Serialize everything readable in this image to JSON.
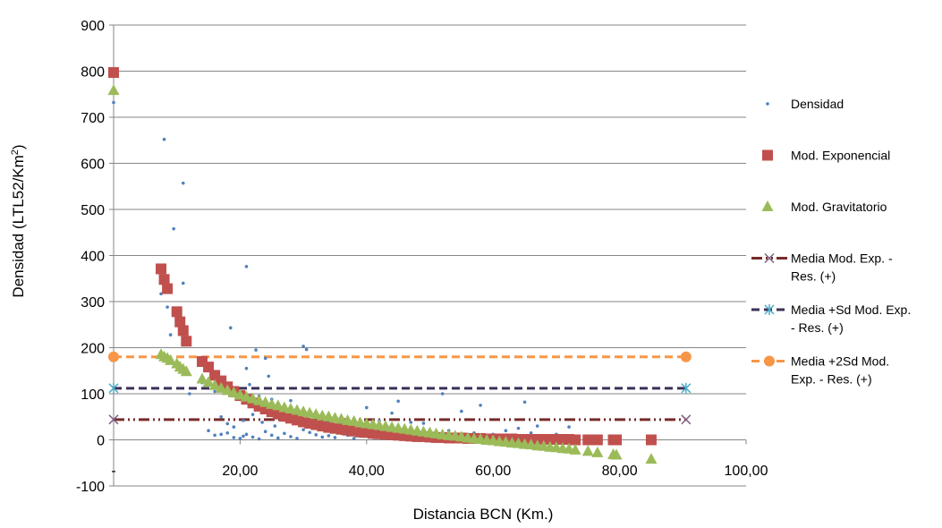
{
  "chart_data": {
    "type": "scatter",
    "title": "",
    "xlabel": "Distancia BCN (Km.)",
    "ylabel_main": "Densidad (LTL52/Km",
    "ylabel_sup": "2",
    "ylabel_end": ")",
    "xlim": [
      0,
      100
    ],
    "ylim": [
      -100,
      900
    ],
    "x_ticks": [
      {
        "v": 0,
        "label": "-"
      },
      {
        "v": 20,
        "label": "20,00"
      },
      {
        "v": 40,
        "label": "40,00"
      },
      {
        "v": 60,
        "label": "60,00"
      },
      {
        "v": 80,
        "label": "80,00"
      },
      {
        "v": 100,
        "label": "100,00"
      }
    ],
    "y_ticks": [
      {
        "v": -100,
        "label": "-100"
      },
      {
        "v": 0,
        "label": "0"
      },
      {
        "v": 100,
        "label": "100"
      },
      {
        "v": 200,
        "label": "200"
      },
      {
        "v": 300,
        "label": "300"
      },
      {
        "v": 400,
        "label": "400"
      },
      {
        "v": 500,
        "label": "500"
      },
      {
        "v": 600,
        "label": "600"
      },
      {
        "v": 700,
        "label": "700"
      },
      {
        "v": 800,
        "label": "800"
      },
      {
        "v": 900,
        "label": "900"
      }
    ],
    "grid": "horizontal",
    "legend_position": "right",
    "series": [
      {
        "name": "Densidad",
        "marker": "dot",
        "color": "#4f81bd",
        "points": [
          [
            0,
            732
          ],
          [
            8,
            652
          ],
          [
            11,
            557
          ],
          [
            9.5,
            458
          ],
          [
            21,
            376
          ],
          [
            11,
            340
          ],
          [
            7.5,
            317
          ],
          [
            8.5,
            288
          ],
          [
            18.5,
            243
          ],
          [
            9,
            228
          ],
          [
            22.5,
            195
          ],
          [
            30,
            203
          ],
          [
            30.5,
            196
          ],
          [
            24,
            177
          ],
          [
            21,
            155
          ],
          [
            24.5,
            138
          ],
          [
            12,
            100
          ],
          [
            14,
            124
          ],
          [
            16,
            105
          ],
          [
            19,
            112
          ],
          [
            20,
            90
          ],
          [
            21.5,
            120
          ],
          [
            22,
            75
          ],
          [
            23,
            95
          ],
          [
            25,
            88
          ],
          [
            26,
            70
          ],
          [
            27,
            62
          ],
          [
            28,
            85
          ],
          [
            29,
            55
          ],
          [
            31,
            60
          ],
          [
            33,
            48
          ],
          [
            34,
            40
          ],
          [
            36,
            35
          ],
          [
            38,
            30
          ],
          [
            40,
            70
          ],
          [
            42,
            42
          ],
          [
            44,
            58
          ],
          [
            45,
            84
          ],
          [
            47,
            38
          ],
          [
            49,
            36
          ],
          [
            52,
            100
          ],
          [
            53,
            20
          ],
          [
            55,
            62
          ],
          [
            57,
            15
          ],
          [
            58,
            75
          ],
          [
            60,
            12
          ],
          [
            62,
            20
          ],
          [
            64,
            25
          ],
          [
            65,
            82
          ],
          [
            66,
            15
          ],
          [
            67,
            30
          ],
          [
            68,
            8
          ],
          [
            70,
            12
          ],
          [
            72,
            28
          ],
          [
            15,
            20
          ],
          [
            16,
            10
          ],
          [
            17,
            12
          ],
          [
            18,
            15
          ],
          [
            19,
            5
          ],
          [
            20,
            3
          ],
          [
            20.5,
            8
          ],
          [
            21,
            12
          ],
          [
            22,
            6
          ],
          [
            23,
            2
          ],
          [
            24,
            18
          ],
          [
            25,
            10
          ],
          [
            26,
            4
          ],
          [
            27,
            14
          ],
          [
            28,
            7
          ],
          [
            29,
            3
          ],
          [
            30,
            22
          ],
          [
            31,
            16
          ],
          [
            32,
            11
          ],
          [
            33,
            6
          ],
          [
            34,
            9
          ],
          [
            35,
            5
          ],
          [
            36,
            14
          ],
          [
            37,
            10
          ],
          [
            38,
            3
          ],
          [
            39,
            8
          ],
          [
            41,
            5
          ],
          [
            43,
            12
          ],
          [
            46,
            3
          ],
          [
            48,
            6
          ],
          [
            50,
            4
          ],
          [
            17,
            50
          ],
          [
            18,
            35
          ],
          [
            19,
            28
          ],
          [
            20.5,
            42
          ],
          [
            22,
            55
          ],
          [
            23.5,
            38
          ],
          [
            25.5,
            30
          ],
          [
            26.5,
            45
          ],
          [
            28,
            40
          ],
          [
            29.5,
            33
          ],
          [
            32,
            28
          ],
          [
            35,
            25
          ]
        ]
      },
      {
        "name": "Mod. Exponencial",
        "marker": "square",
        "color": "#c0504d",
        "points": [
          [
            0,
            797
          ],
          [
            7.5,
            371
          ],
          [
            8,
            348
          ],
          [
            8.5,
            328
          ],
          [
            10,
            278
          ],
          [
            10.5,
            256
          ],
          [
            11,
            237
          ],
          [
            11.5,
            214
          ],
          [
            14,
            170
          ],
          [
            15,
            158
          ],
          [
            16,
            140
          ],
          [
            17,
            128
          ],
          [
            18,
            115
          ],
          [
            19,
            105
          ],
          [
            20,
            96
          ],
          [
            21,
            88
          ],
          [
            22,
            80
          ],
          [
            23,
            73
          ],
          [
            24,
            67
          ],
          [
            25,
            61
          ],
          [
            26,
            56
          ],
          [
            27,
            51
          ],
          [
            28,
            47
          ],
          [
            29,
            43
          ],
          [
            30,
            39
          ],
          [
            31,
            36
          ],
          [
            32,
            33
          ],
          [
            33,
            30
          ],
          [
            34,
            27
          ],
          [
            35,
            25
          ],
          [
            36,
            23
          ],
          [
            37,
            21
          ],
          [
            38,
            19
          ],
          [
            39,
            17
          ],
          [
            40,
            16
          ],
          [
            41,
            14
          ],
          [
            42,
            13
          ],
          [
            43,
            12
          ],
          [
            44,
            11
          ],
          [
            45,
            10
          ],
          [
            46,
            9
          ],
          [
            47,
            8
          ],
          [
            48,
            7
          ],
          [
            49,
            7
          ],
          [
            50,
            6
          ],
          [
            51,
            5
          ],
          [
            52,
            5
          ],
          [
            53,
            4
          ],
          [
            54,
            4
          ],
          [
            55,
            4
          ],
          [
            56,
            3
          ],
          [
            57,
            3
          ],
          [
            58,
            3
          ],
          [
            59,
            2
          ],
          [
            60,
            2
          ],
          [
            61,
            2
          ],
          [
            62,
            2
          ],
          [
            63,
            2
          ],
          [
            64,
            1
          ],
          [
            65,
            1
          ],
          [
            66,
            1
          ],
          [
            67,
            1
          ],
          [
            68,
            1
          ],
          [
            69,
            1
          ],
          [
            70,
            1
          ],
          [
            71,
            1
          ],
          [
            72,
            1
          ],
          [
            73,
            0
          ],
          [
            75,
            0
          ],
          [
            76.5,
            0
          ],
          [
            79,
            0
          ],
          [
            79.5,
            0
          ],
          [
            85,
            0
          ]
        ]
      },
      {
        "name": "Mod. Gravitatorio",
        "marker": "triangle",
        "color": "#9bbb59",
        "points": [
          [
            0,
            758
          ],
          [
            7.5,
            185
          ],
          [
            8,
            180
          ],
          [
            8.5,
            177
          ],
          [
            9,
            172
          ],
          [
            10,
            165
          ],
          [
            10.5,
            158
          ],
          [
            11,
            153
          ],
          [
            11.5,
            148
          ],
          [
            14,
            132
          ],
          [
            15,
            125
          ],
          [
            16,
            118
          ],
          [
            17,
            112
          ],
          [
            18,
            107
          ],
          [
            19,
            102
          ],
          [
            20,
            97
          ],
          [
            21,
            93
          ],
          [
            22,
            89
          ],
          [
            23,
            85
          ],
          [
            24,
            81
          ],
          [
            25,
            77
          ],
          [
            26,
            74
          ],
          [
            27,
            70
          ],
          [
            28,
            67
          ],
          [
            29,
            64
          ],
          [
            30,
            61
          ],
          [
            31,
            58
          ],
          [
            32,
            55
          ],
          [
            33,
            52
          ],
          [
            34,
            50
          ],
          [
            35,
            47
          ],
          [
            36,
            45
          ],
          [
            37,
            42
          ],
          [
            38,
            40
          ],
          [
            39,
            37
          ],
          [
            40,
            35
          ],
          [
            41,
            33
          ],
          [
            42,
            31
          ],
          [
            43,
            29
          ],
          [
            44,
            27
          ],
          [
            45,
            25
          ],
          [
            46,
            23
          ],
          [
            47,
            21
          ],
          [
            48,
            19
          ],
          [
            49,
            17
          ],
          [
            50,
            15
          ],
          [
            51,
            13
          ],
          [
            52,
            11
          ],
          [
            53,
            9
          ],
          [
            54,
            8
          ],
          [
            55,
            6
          ],
          [
            56,
            4
          ],
          [
            57,
            2
          ],
          [
            58,
            1
          ],
          [
            59,
            -1
          ],
          [
            60,
            -2
          ],
          [
            61,
            -4
          ],
          [
            62,
            -5
          ],
          [
            63,
            -7
          ],
          [
            64,
            -8
          ],
          [
            65,
            -10
          ],
          [
            66,
            -11
          ],
          [
            67,
            -13
          ],
          [
            68,
            -14
          ],
          [
            69,
            -16
          ],
          [
            70,
            -17
          ],
          [
            71,
            -19
          ],
          [
            72,
            -20
          ],
          [
            73,
            -22
          ],
          [
            75,
            -25
          ],
          [
            76.5,
            -28
          ],
          [
            79,
            -32
          ],
          [
            79.5,
            -33
          ],
          [
            85,
            -42
          ]
        ]
      },
      {
        "name": "Media Mod. Exp. - Res. (+)",
        "marker": "x",
        "line": "dash-dot",
        "color": "#772c2a",
        "marker_color": "#7f6084",
        "value": 44,
        "x_range": [
          0,
          90.5
        ]
      },
      {
        "name": "Media +Sd Mod. Exp. - Res. (+)",
        "marker": "star",
        "line": "dash",
        "color": "#3c3057",
        "marker_color": "#4bacc6",
        "value": 112,
        "x_range": [
          0,
          90.5
        ]
      },
      {
        "name": "Media +2Sd Mod. Exp. - Res. (+)",
        "marker": "circle",
        "line": "dash",
        "color": "#f79646",
        "marker_color": "#f79646",
        "value": 180,
        "x_range": [
          0,
          90.5
        ]
      }
    ],
    "legend": [
      {
        "lines": [
          "Densidad"
        ]
      },
      {
        "lines": [
          "Mod. Exponencial"
        ]
      },
      {
        "lines": [
          "Mod. Gravitatorio"
        ]
      },
      {
        "lines": [
          "Media Mod. Exp. -",
          "Res. (+)"
        ]
      },
      {
        "lines": [
          "Media +Sd Mod. Exp.",
          "- Res. (+)"
        ]
      },
      {
        "lines": [
          "Media +2Sd Mod.",
          "Exp. - Res. (+)"
        ]
      }
    ]
  }
}
